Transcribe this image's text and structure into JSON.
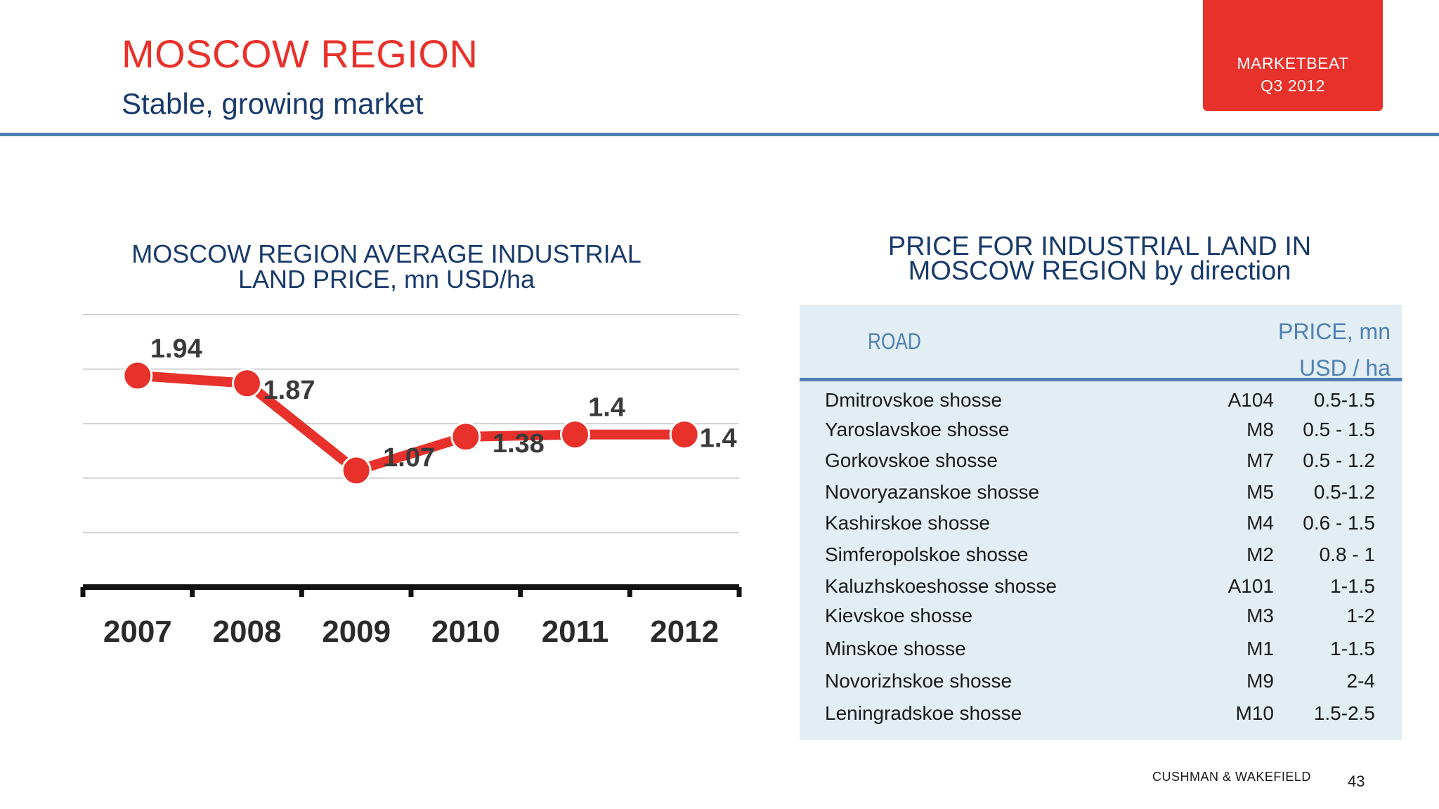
{
  "header": {
    "title": "MOSCOW REGION",
    "subtitle": "Stable, growing market",
    "tag_line1": "MARKETBEAT",
    "tag_line2": "Q3 2012"
  },
  "colors": {
    "accent_red": "#e8312a",
    "navy": "#183a6b",
    "rule_blue": "#4f7fb5",
    "table_bg": "#e2eef3"
  },
  "chart_data": {
    "type": "line",
    "title_line1": "MOSCOW REGION AVERAGE  INDUSTRIAL",
    "title_line2": "LAND PRICE, mn USD/ha",
    "categories": [
      "2007",
      "2008",
      "2009",
      "2010",
      "2011",
      "2012"
    ],
    "values": [
      1.94,
      1.87,
      1.07,
      1.38,
      1.4,
      1.4
    ],
    "data_labels": [
      "1.94",
      "1.87",
      "1.07",
      "1.38",
      "1.4",
      "1.4"
    ],
    "ylim": [
      0.0,
      2.5
    ],
    "grid": true,
    "legend": "none",
    "series_color": "#e8312a"
  },
  "table": {
    "title_line1": "PRICE FOR INDUSTRIAL LAND IN",
    "title_line2": "MOSCOW REGION by direction",
    "header_road": "ROAD",
    "header_price_line1": "PRICE,  mn",
    "header_price_line2": "USD  /  ha",
    "rows": [
      {
        "name": "Dmitrovskoe shosse",
        "code": "A104",
        "price": "0.5-1.5"
      },
      {
        "name": "Yaroslavskoe shosse",
        "code": "M8",
        "price": "0.5 - 1.5"
      },
      {
        "name": "Gorkovskoe shosse",
        "code": "M7",
        "price": "0.5 - 1.2"
      },
      {
        "name": "Novoryazanskoe shosse",
        "code": "M5",
        "price": "0.5-1.2"
      },
      {
        "name": "Kashirskoe shosse",
        "code": "M4",
        "price": "0.6 - 1.5"
      },
      {
        "name": "Simferopolskoe shosse",
        "code": "M2",
        "price": "0.8 - 1"
      },
      {
        "name": "Kaluzhskoeshosse shosse",
        "code": "A101",
        "price": "1-1.5"
      },
      {
        "name": "Kievskoe shosse",
        "code": "M3",
        "price": "1-2"
      },
      {
        "name": "Minskoe shosse",
        "code": "M1",
        "price": "1-1.5"
      },
      {
        "name": "Novorizhskoe shosse",
        "code": "M9",
        "price": "2-4"
      },
      {
        "name": "Leningradskoe shosse",
        "code": "M10",
        "price": "1.5-2.5"
      }
    ]
  },
  "footer": {
    "brand": "CUSHMAN & WAKEFIELD",
    "page": "43"
  }
}
